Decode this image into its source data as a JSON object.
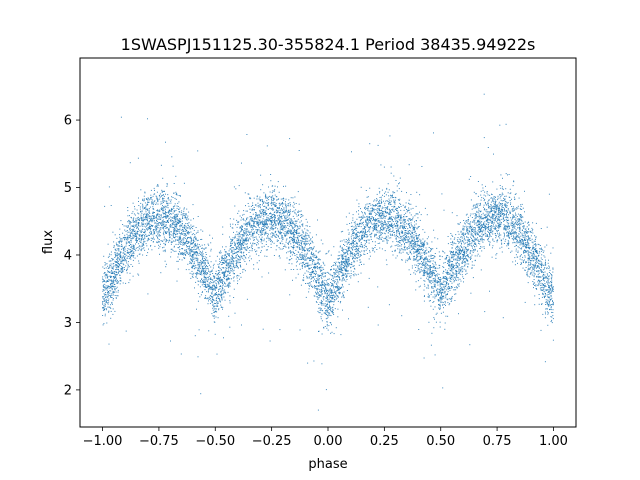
{
  "chart_data": {
    "type": "scatter",
    "title": "1SWASPJ151125.30-355824.1 Period 38435.94922s",
    "xlabel": "phase",
    "ylabel": "flux",
    "xlim": [
      -1.1,
      1.1
    ],
    "ylim": [
      1.45,
      6.92
    ],
    "xticks": [
      -1.0,
      -0.75,
      -0.5,
      -0.25,
      0.0,
      0.25,
      0.5,
      0.75,
      1.0
    ],
    "xtick_labels": [
      "−1.00",
      "−0.75",
      "−0.50",
      "−0.25",
      "0.00",
      "0.25",
      "0.50",
      "0.75",
      "1.00"
    ],
    "yticks": [
      2,
      3,
      4,
      5,
      6
    ],
    "ytick_labels": [
      "2",
      "3",
      "4",
      "5",
      "6"
    ],
    "grid": false,
    "point_color": "#1f77b4",
    "phase_range": [
      -1.0,
      1.0
    ],
    "curve": {
      "maxima": [
        {
          "phase": -0.75,
          "flux": 4.55
        },
        {
          "phase": -0.25,
          "flux": 4.55
        },
        {
          "phase": 0.25,
          "flux": 4.55
        },
        {
          "phase": 0.75,
          "flux": 4.55
        }
      ],
      "minima": [
        {
          "phase": -1.0,
          "flux": 3.35
        },
        {
          "phase": -0.5,
          "flux": 3.45
        },
        {
          "phase": 0.0,
          "flux": 3.3
        },
        {
          "phase": 0.5,
          "flux": 3.45
        },
        {
          "phase": 1.0,
          "flux": 3.35
        }
      ],
      "scatter_sigma": 0.22,
      "outlier_range": [
        1.7,
        6.6
      ]
    }
  }
}
